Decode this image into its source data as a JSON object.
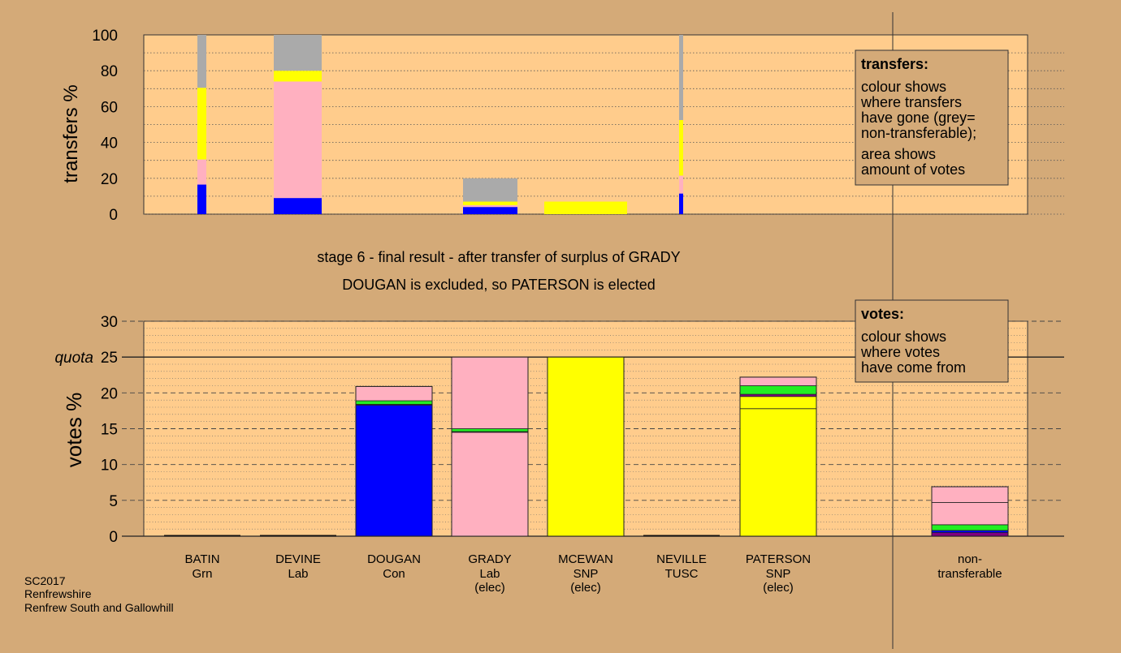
{
  "colors": {
    "background": "#d4aa78",
    "plot_background": "#ffcc8c",
    "con": "#0000ff",
    "lab": "#ffb0c0",
    "snp": "#ffff00",
    "grn": "#22ee22",
    "other": "#7f007f",
    "nontransferable": "#aaaaaa"
  },
  "caption": {
    "line1": "stage 6 - final result - after transfer of surplus of GRADY",
    "line2": "DOUGAN is excluded, so PATERSON is elected"
  },
  "footer": {
    "lines": [
      "SC2017",
      "Renfrewshire",
      "Renfrew South and Gallowhill"
    ]
  },
  "chart_data": [
    {
      "type": "bar",
      "stacked": true,
      "ylabel": "transfers %",
      "ylim": [
        0,
        100
      ],
      "yticks": [
        0,
        20,
        40,
        60,
        80,
        100
      ],
      "legend": {
        "position": "top-right",
        "title": "transfers:",
        "lines": [
          "colour shows",
          "where transfers",
          "have gone (grey=",
          "non-transferable);"
        ],
        "lines2": [
          "area shows",
          "amount of votes"
        ]
      },
      "bars": [
        {
          "category": "BATIN",
          "width": "narrow",
          "segments": [
            {
              "party": "con",
              "value": 16.5
            },
            {
              "party": "lab",
              "value": 14
            },
            {
              "party": "snp",
              "value": 40
            },
            {
              "party": "nontransferable",
              "value": 29.5
            }
          ]
        },
        {
          "category": "DEVINE",
          "width": "medium",
          "segments": [
            {
              "party": "con",
              "value": 9
            },
            {
              "party": "lab",
              "value": 65
            },
            {
              "party": "snp",
              "value": 6
            },
            {
              "party": "nontransferable",
              "value": 20
            }
          ]
        },
        {
          "category": "GRADY",
          "width": "medium",
          "segments": [
            {
              "party": "con",
              "value": 4
            },
            {
              "party": "lab",
              "value": 1
            },
            {
              "party": "snp",
              "value": 2
            },
            {
              "party": "nontransferable",
              "value": 13
            }
          ]
        },
        {
          "category": "MCEWAN",
          "width": "wide",
          "segments": [
            {
              "party": "snp",
              "value": 7
            }
          ]
        },
        {
          "category": "NEVILLE",
          "width": "thin",
          "segments": [
            {
              "party": "con",
              "value": 11.5
            },
            {
              "party": "lab",
              "value": 10
            },
            {
              "party": "snp",
              "value": 31
            },
            {
              "party": "nontransferable",
              "value": 47.5
            }
          ]
        }
      ]
    },
    {
      "type": "bar",
      "stacked": true,
      "ylabel": "votes %",
      "ylim": [
        0,
        30
      ],
      "yticks": [
        0,
        5,
        10,
        15,
        20,
        25,
        30
      ],
      "quota": {
        "label": "quota",
        "value": 25
      },
      "legend": {
        "position": "top-right",
        "title": "votes:",
        "lines": [
          "colour shows",
          "where votes",
          "have come from"
        ]
      },
      "bars": [
        {
          "name": "BATIN",
          "party": "Grn",
          "note": "",
          "segments": []
        },
        {
          "name": "DEVINE",
          "party": "Lab",
          "note": "",
          "segments": []
        },
        {
          "name": "DOUGAN",
          "party": "Con",
          "note": "",
          "segments": [
            {
              "party": "con",
              "value": 18.3
            },
            {
              "party": "other",
              "value": 0.1
            },
            {
              "party": "grn",
              "value": 0.5
            },
            {
              "party": "lab",
              "value": 2.0
            }
          ]
        },
        {
          "name": "GRADY",
          "party": "Lab",
          "note": "(elec)",
          "segments": [
            {
              "party": "lab",
              "value": 14.5
            },
            {
              "party": "other",
              "value": 0.1
            },
            {
              "party": "grn",
              "value": 0.4
            },
            {
              "party": "lab",
              "value": 10.0
            }
          ]
        },
        {
          "name": "MCEWAN",
          "party": "SNP",
          "note": "(elec)",
          "segments": [
            {
              "party": "snp",
              "value": 25
            }
          ]
        },
        {
          "name": "NEVILLE",
          "party": "TUSC",
          "note": "",
          "segments": []
        },
        {
          "name": "PATERSON",
          "party": "SNP",
          "note": "(elec)",
          "segments": [
            {
              "party": "snp",
              "value": 17.8
            },
            {
              "party": "snp",
              "value": 1.7
            },
            {
              "party": "other",
              "value": 0.3
            },
            {
              "party": "grn",
              "value": 1.2
            },
            {
              "party": "lab",
              "value": 1.2
            }
          ]
        },
        {
          "name": "non-",
          "party": "transferable",
          "note": "",
          "segments": [
            {
              "party": "other",
              "value": 0.5
            },
            {
              "party": "con",
              "value": 0.3
            },
            {
              "party": "grn",
              "value": 0.8
            },
            {
              "party": "lab",
              "value": 3.1
            },
            {
              "party": "lab",
              "value": 2.2
            }
          ]
        }
      ]
    }
  ]
}
